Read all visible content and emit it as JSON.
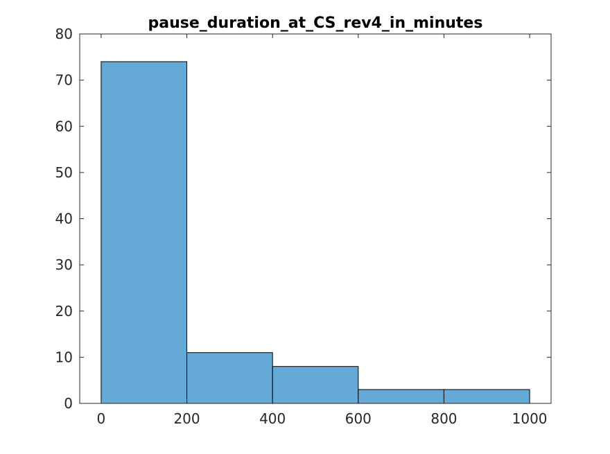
{
  "chart_data": {
    "type": "bar",
    "title": "pause_duration_at_CS_rev4_in_minutes",
    "xlabel": "",
    "ylabel": "",
    "bins": [
      {
        "start": 0,
        "end": 200,
        "value": 74
      },
      {
        "start": 200,
        "end": 400,
        "value": 11
      },
      {
        "start": 400,
        "end": 600,
        "value": 8
      },
      {
        "start": 600,
        "end": 800,
        "value": 3
      },
      {
        "start": 800,
        "end": 1000,
        "value": 3
      }
    ],
    "xlim": [
      -50,
      1050
    ],
    "ylim": [
      0,
      80
    ],
    "xticks": [
      0,
      200,
      400,
      600,
      800,
      1000
    ],
    "yticks": [
      0,
      10,
      20,
      30,
      40,
      50,
      60,
      70,
      80
    ],
    "grid": false,
    "bar_color": "#65aad7",
    "edge_color": "#000000"
  }
}
